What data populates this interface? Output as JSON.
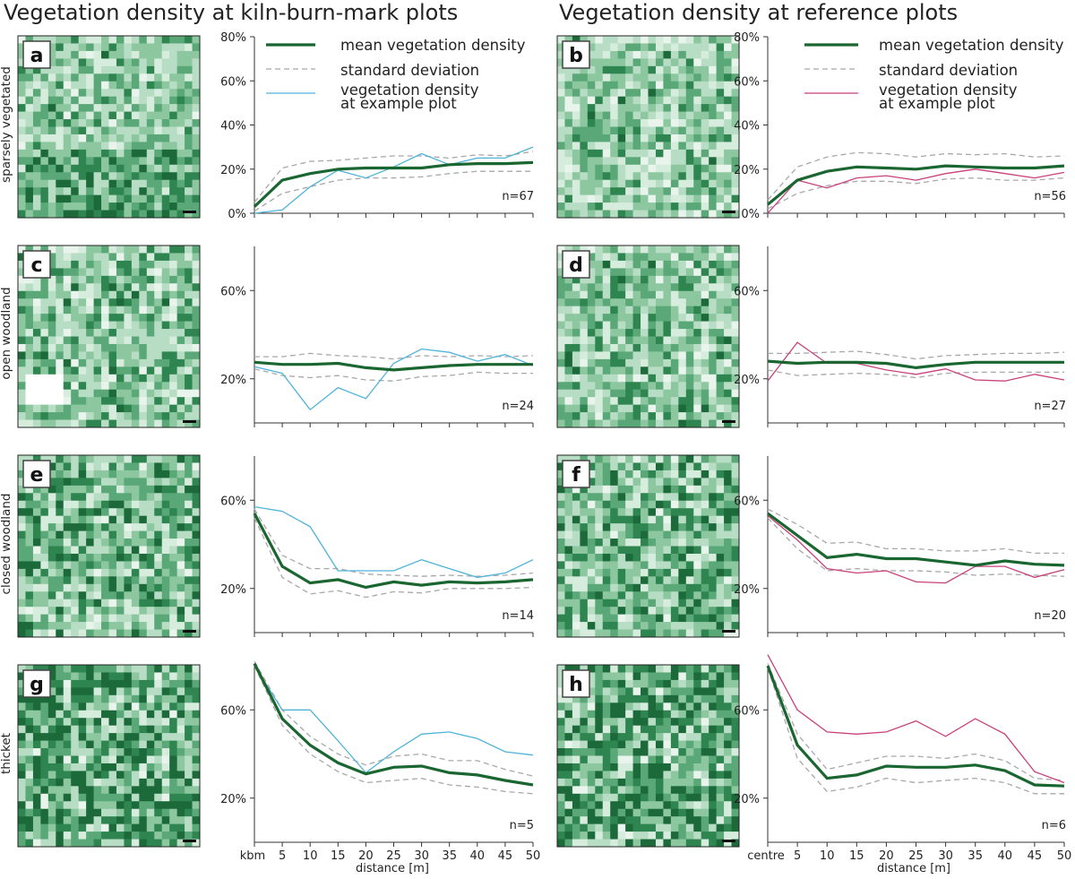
{
  "titles": {
    "left": "Vegetation density at kiln-burn-mark plots",
    "right": "Vegetation density at reference plots"
  },
  "row_labels": [
    "sparsely vegetated",
    "open woodland",
    "closed woodland",
    "thicket"
  ],
  "legend": {
    "mean": "mean vegetation density",
    "sd": "standard deviation",
    "example_line1": "vegetation density",
    "example_line2": "at example plot"
  },
  "colors": {
    "mean": "#1a6630",
    "sd": "#a8a8a8",
    "example_kbm": "#4fb3d9",
    "example_ref": "#c8407a",
    "tile_palette": [
      "#e8f4ec",
      "#d6ecdd",
      "#b8ddc5",
      "#8cc7a0",
      "#5aa877",
      "#2f8550",
      "#1c6a3a"
    ]
  },
  "chart_data": [
    {
      "panel": "a",
      "type": "line",
      "n_label": "n=67",
      "ylim": [
        0,
        80
      ],
      "yticks": [
        "0%",
        "20%",
        "40%",
        "60%",
        "80%"
      ],
      "x": [
        0,
        5,
        10,
        15,
        20,
        25,
        30,
        35,
        40,
        45,
        50
      ],
      "series": [
        {
          "name": "mean vegetation density",
          "values": [
            3,
            15,
            18,
            20,
            20.5,
            20.5,
            20.5,
            22,
            22.5,
            22.5,
            23
          ]
        },
        {
          "name": "standard deviation (upper)",
          "values": [
            5,
            20.5,
            23.5,
            24,
            25,
            26,
            26,
            25,
            26.5,
            26,
            28
          ]
        },
        {
          "name": "standard deviation (lower)",
          "values": [
            1,
            9,
            12,
            15,
            16,
            16,
            16.5,
            18,
            19,
            19,
            19
          ]
        },
        {
          "name": "vegetation density at example plot",
          "values": [
            0,
            1.5,
            12,
            19.5,
            16,
            21,
            27,
            22,
            25,
            25,
            30
          ]
        }
      ]
    },
    {
      "panel": "b",
      "type": "line",
      "n_label": "n=56",
      "ylim": [
        0,
        80
      ],
      "yticks": [
        "0%",
        "20%",
        "40%",
        "60%",
        "80%"
      ],
      "x": [
        0,
        5,
        10,
        15,
        20,
        25,
        30,
        35,
        40,
        45,
        50
      ],
      "series": [
        {
          "name": "mean vegetation density",
          "values": [
            4,
            15,
            19,
            21,
            20.5,
            20,
            21.5,
            21,
            20.5,
            20.5,
            21.5
          ]
        },
        {
          "name": "standard deviation (upper)",
          "values": [
            6,
            21,
            25.5,
            27.5,
            27,
            25.5,
            27,
            26.5,
            27,
            25.5,
            26
          ]
        },
        {
          "name": "standard deviation (lower)",
          "values": [
            2,
            9,
            12.5,
            14.5,
            14.5,
            13.5,
            15.5,
            16,
            15,
            15,
            16
          ]
        },
        {
          "name": "vegetation density at example plot",
          "values": [
            0,
            15,
            11.5,
            16,
            17,
            15,
            18,
            20,
            18,
            16,
            18.5
          ]
        }
      ]
    },
    {
      "panel": "c",
      "type": "line",
      "n_label": "n=24",
      "ylim": [
        0,
        80
      ],
      "yticks": [
        "20%",
        "60%"
      ],
      "x": [
        0,
        5,
        10,
        15,
        20,
        25,
        30,
        35,
        40,
        45,
        50
      ],
      "series": [
        {
          "name": "mean vegetation density",
          "values": [
            27.5,
            26.5,
            26.5,
            27,
            25,
            24,
            25,
            26,
            26.5,
            26.5,
            26.5
          ]
        },
        {
          "name": "standard deviation (upper)",
          "values": [
            30,
            30,
            31.5,
            30.5,
            30,
            29,
            30.5,
            30,
            30.5,
            30,
            30.5
          ]
        },
        {
          "name": "standard deviation (lower)",
          "values": [
            24.5,
            21.5,
            20.5,
            21.5,
            19.5,
            19,
            21,
            21.5,
            23,
            22.5,
            22.5
          ]
        },
        {
          "name": "vegetation density at example plot",
          "values": [
            25.5,
            22.5,
            6,
            16,
            11,
            27,
            33.5,
            32,
            28,
            31,
            26
          ]
        }
      ]
    },
    {
      "panel": "d",
      "type": "line",
      "n_label": "n=27",
      "ylim": [
        0,
        80
      ],
      "yticks": [
        "20%",
        "60%"
      ],
      "x": [
        0,
        5,
        10,
        15,
        20,
        25,
        30,
        35,
        40,
        45,
        50
      ],
      "series": [
        {
          "name": "mean vegetation density",
          "values": [
            28,
            27,
            27.5,
            27.5,
            27,
            25,
            26.5,
            27.5,
            27.5,
            27.5,
            27.5
          ]
        },
        {
          "name": "standard deviation (upper)",
          "values": [
            31.5,
            31.5,
            32,
            32.5,
            31,
            29,
            30.5,
            31,
            31.5,
            31.5,
            32
          ]
        },
        {
          "name": "standard deviation (lower)",
          "values": [
            24,
            21.5,
            22,
            22.5,
            22,
            20.5,
            22.5,
            23,
            23,
            23,
            23
          ]
        },
        {
          "name": "vegetation density at example plot",
          "values": [
            19,
            36.5,
            27,
            27,
            24,
            22,
            24.5,
            19.5,
            19,
            22,
            19.5
          ]
        }
      ]
    },
    {
      "panel": "e",
      "type": "line",
      "n_label": "n=14",
      "ylim": [
        0,
        80
      ],
      "yticks": [
        "20%",
        "60%"
      ],
      "x": [
        0,
        5,
        10,
        15,
        20,
        25,
        30,
        35,
        40,
        45,
        50
      ],
      "series": [
        {
          "name": "mean vegetation density",
          "values": [
            54,
            30,
            22.5,
            24,
            20.5,
            23,
            21.5,
            23,
            22.5,
            23,
            24
          ]
        },
        {
          "name": "standard deviation (upper)",
          "values": [
            56,
            35,
            29,
            29,
            26.5,
            26,
            25.5,
            26,
            25.5,
            26,
            27
          ]
        },
        {
          "name": "standard deviation (lower)",
          "values": [
            52,
            25,
            17.5,
            19,
            16,
            18.5,
            18,
            20,
            20,
            20,
            20.5
          ]
        },
        {
          "name": "vegetation density at example plot",
          "values": [
            57,
            55,
            48,
            28,
            28,
            28,
            33,
            29,
            25,
            27,
            33
          ]
        }
      ]
    },
    {
      "panel": "f",
      "type": "line",
      "n_label": "n=20",
      "ylim": [
        0,
        80
      ],
      "yticks": [
        "20%",
        "60%"
      ],
      "x": [
        0,
        5,
        10,
        15,
        20,
        25,
        30,
        35,
        40,
        45,
        50
      ],
      "series": [
        {
          "name": "mean vegetation density",
          "values": [
            54,
            44,
            34,
            35.5,
            33.5,
            33.5,
            32,
            30.5,
            32.5,
            31,
            30.5
          ]
        },
        {
          "name": "standard deviation (upper)",
          "values": [
            56,
            49,
            40.5,
            41,
            38,
            38,
            37,
            37,
            38,
            36,
            36
          ]
        },
        {
          "name": "standard deviation (lower)",
          "values": [
            52,
            38,
            28,
            29,
            28,
            28,
            27.5,
            26,
            26.5,
            26,
            25.5
          ]
        },
        {
          "name": "vegetation density at example plot",
          "values": [
            53,
            42,
            29,
            27,
            28,
            23,
            22.5,
            30,
            30,
            25,
            28.5
          ]
        }
      ]
    },
    {
      "panel": "g",
      "type": "line",
      "n_label": "n=5",
      "ylim": [
        0,
        80
      ],
      "yticks": [
        "20%",
        "60%"
      ],
      "x": [
        0,
        5,
        10,
        15,
        20,
        25,
        30,
        35,
        40,
        45,
        50
      ],
      "series": [
        {
          "name": "mean vegetation density",
          "values": [
            81,
            56,
            44,
            36,
            31,
            34,
            34.5,
            31.5,
            30.5,
            28,
            26
          ]
        },
        {
          "name": "standard deviation (upper)",
          "values": [
            82,
            60,
            48,
            40,
            35,
            39,
            40,
            37,
            37,
            33,
            30
          ]
        },
        {
          "name": "standard deviation (lower)",
          "values": [
            80,
            53,
            40,
            32,
            27,
            28,
            29,
            26,
            25,
            23,
            22
          ]
        },
        {
          "name": "vegetation density at example plot",
          "values": [
            80,
            60,
            60,
            46,
            31.5,
            41,
            49,
            50,
            47,
            41,
            39.5
          ]
        }
      ]
    },
    {
      "panel": "h",
      "type": "line",
      "n_label": "n=6",
      "ylim": [
        0,
        80
      ],
      "yticks": [
        "20%",
        "60%"
      ],
      "x": [
        0,
        5,
        10,
        15,
        20,
        25,
        30,
        35,
        40,
        45,
        50
      ],
      "series": [
        {
          "name": "mean vegetation density",
          "values": [
            80,
            44,
            29,
            30.5,
            34.5,
            34,
            34,
            35,
            32.5,
            26,
            25.5
          ]
        },
        {
          "name": "standard deviation (upper)",
          "values": [
            81,
            49,
            33,
            36,
            39,
            39,
            38,
            40,
            37,
            29,
            28
          ]
        },
        {
          "name": "standard deviation (lower)",
          "values": [
            79,
            38,
            23,
            25,
            29,
            27,
            28,
            29,
            27,
            22,
            22
          ]
        },
        {
          "name": "vegetation density at example plot",
          "values": [
            85,
            60,
            50,
            49,
            50,
            55,
            48,
            56,
            49,
            32,
            27
          ]
        }
      ]
    }
  ],
  "x_tick_labels_kbm": [
    "kbm",
    "5",
    "10",
    "15",
    "20",
    "25",
    "30",
    "35",
    "40",
    "45",
    "50"
  ],
  "x_tick_labels_ref": [
    "centre",
    "5",
    "10",
    "15",
    "20",
    "25",
    "30",
    "35",
    "40",
    "45",
    "50"
  ],
  "x_axis_label": "distance [m]"
}
